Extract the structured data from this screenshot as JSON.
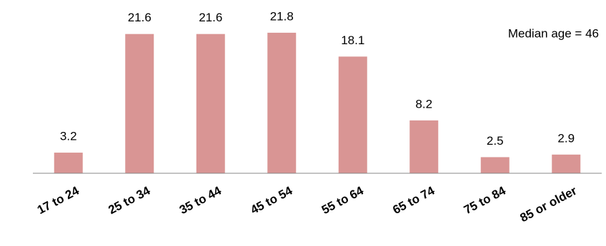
{
  "chart_data": {
    "type": "bar",
    "categories": [
      "17 to 24",
      "25 to 34",
      "35 to 44",
      "45 to 54",
      "55 to 64",
      "65 to 74",
      "75 to 84",
      "85 or older"
    ],
    "values": [
      3.2,
      21.6,
      21.6,
      21.8,
      18.1,
      8.2,
      2.5,
      2.9
    ],
    "color": "#d99594",
    "ylim": [
      0,
      24
    ],
    "annotation": "Median age = 46"
  }
}
